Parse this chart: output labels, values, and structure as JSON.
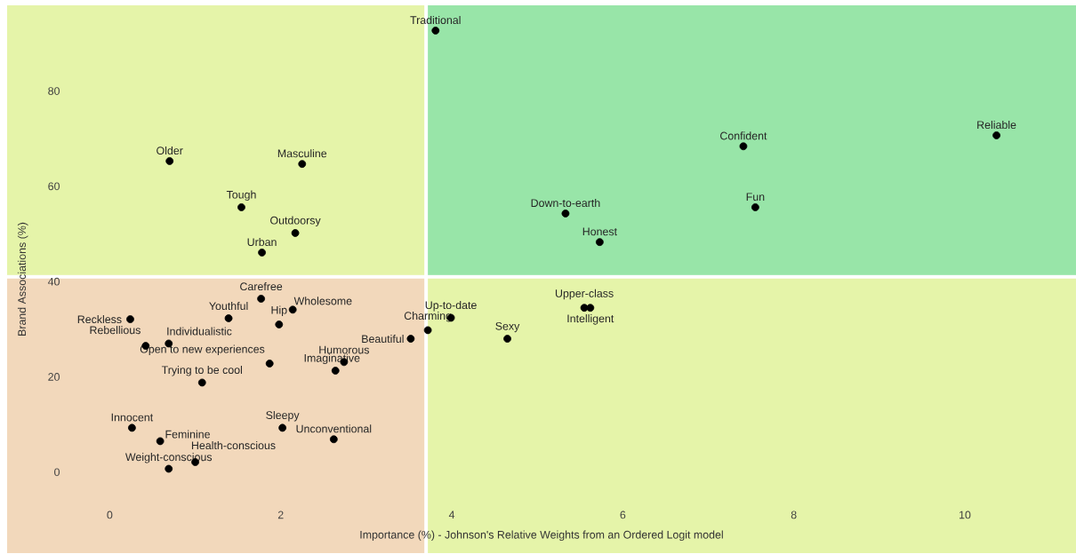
{
  "chart_data": {
    "type": "scatter",
    "xlabel": "Importance (%) - Johnson's Relative Weights from an Ordered Logit model",
    "ylabel": "Brand Associations (%)",
    "xlim": [
      -1.2,
      11.3
    ],
    "ylim": [
      -17,
      98
    ],
    "xticks": [
      0,
      2,
      4,
      6,
      8,
      10
    ],
    "yticks": [
      0,
      20,
      40,
      60,
      80
    ],
    "grid": false,
    "marker": "circle",
    "series": [
      {
        "color": "#000000",
        "x": [
          3.81,
          10.37,
          7.41,
          7.55,
          5.33,
          5.73,
          0.7,
          2.25,
          1.54,
          2.17,
          1.78,
          1.77,
          2.14,
          1.39,
          1.98,
          0.24,
          0.69,
          0.42,
          1.87,
          1.08,
          2.74,
          2.64,
          3.52,
          3.72,
          3.99,
          5.55,
          5.62,
          4.65,
          0.26,
          0.59,
          1.0,
          0.69,
          2.02,
          2.62
        ],
        "values": [
          92.7,
          70.7,
          68.4,
          55.6,
          54.3,
          48.3,
          65.3,
          64.7,
          55.6,
          50.2,
          46.1,
          36.4,
          34.1,
          32.3,
          31.0,
          32.1,
          27.0,
          26.5,
          22.8,
          18.8,
          23.1,
          21.3,
          28.0,
          29.8,
          32.4,
          34.5,
          34.5,
          28.0,
          9.3,
          6.5,
          2.1,
          0.7,
          9.3,
          6.9
        ]
      }
    ],
    "ref_lines": [
      {
        "axis": "x",
        "value": 3.7,
        "color": "#ffffff"
      },
      {
        "axis": "y",
        "value": 41,
        "color": "#ffffff"
      }
    ],
    "annotations": [
      {
        "text": "Traditional",
        "x": 3.81,
        "y": 92.7
      },
      {
        "text": "Reliable",
        "x": 10.37,
        "y": 70.7
      },
      {
        "text": "Confident",
        "x": 7.41,
        "y": 68.4
      },
      {
        "text": "Fun",
        "x": 7.55,
        "y": 55.6
      },
      {
        "text": "Down-to-earth",
        "x": 5.33,
        "y": 54.3
      },
      {
        "text": "Honest",
        "x": 5.73,
        "y": 48.3
      },
      {
        "text": "Older",
        "x": 0.7,
        "y": 65.3
      },
      {
        "text": "Masculine",
        "x": 2.25,
        "y": 64.7
      },
      {
        "text": "Tough",
        "x": 1.54,
        "y": 55.6
      },
      {
        "text": "Outdoorsy",
        "x": 2.17,
        "y": 50.2
      },
      {
        "text": "Urban",
        "x": 1.78,
        "y": 46.1
      },
      {
        "text": "Carefree",
        "x": 1.77,
        "y": 36.4
      },
      {
        "text": "Wholesome",
        "x": 2.14,
        "y": 34.1
      },
      {
        "text": "Youthful",
        "x": 1.39,
        "y": 32.3
      },
      {
        "text": "Hip",
        "x": 1.98,
        "y": 31.0
      },
      {
        "text": "Reckless",
        "x": 0.24,
        "y": 32.1
      },
      {
        "text": "Individualistic",
        "x": 0.69,
        "y": 27.0
      },
      {
        "text": "Rebellious",
        "x": 0.42,
        "y": 26.5
      },
      {
        "text": "Open to new experiences",
        "x": 1.87,
        "y": 22.8
      },
      {
        "text": "Trying to be cool",
        "x": 1.08,
        "y": 18.8
      },
      {
        "text": "Humorous",
        "x": 2.74,
        "y": 23.1
      },
      {
        "text": "Imaginative",
        "x": 2.64,
        "y": 21.3
      },
      {
        "text": "Beautiful",
        "x": 3.52,
        "y": 28.0
      },
      {
        "text": "Charming",
        "x": 3.72,
        "y": 29.8
      },
      {
        "text": "Up-to-date",
        "x": 3.99,
        "y": 32.4
      },
      {
        "text": "Upper-class",
        "x": 5.55,
        "y": 34.5
      },
      {
        "text": "Intelligent",
        "x": 5.62,
        "y": 34.5
      },
      {
        "text": "Sexy",
        "x": 4.65,
        "y": 28.0
      },
      {
        "text": "Innocent",
        "x": 0.26,
        "y": 9.3
      },
      {
        "text": "Feminine",
        "x": 0.59,
        "y": 6.5
      },
      {
        "text": "Health-conscious",
        "x": 1.0,
        "y": 2.1
      },
      {
        "text": "Weight-conscious",
        "x": 0.69,
        "y": 0.7
      },
      {
        "text": "Sleepy",
        "x": 2.02,
        "y": 9.3
      },
      {
        "text": "Unconventional",
        "x": 2.62,
        "y": 6.9
      }
    ]
  }
}
